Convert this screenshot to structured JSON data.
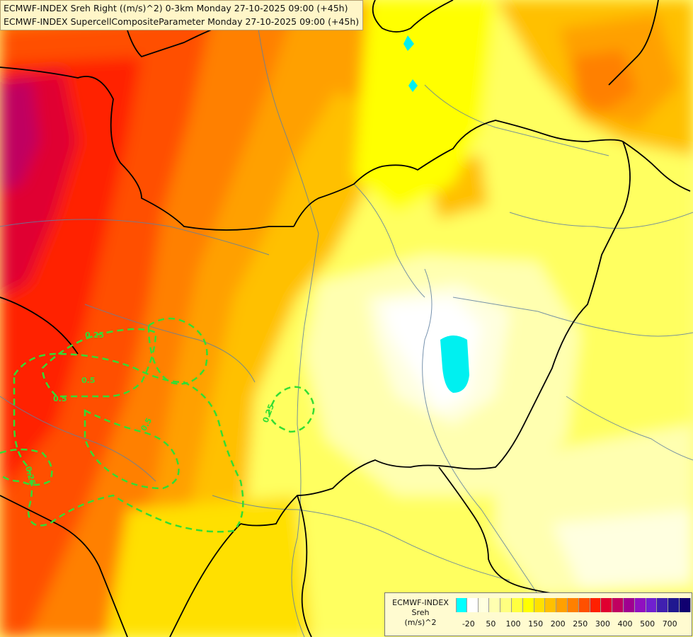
{
  "title": {
    "line1": "ECMWF-INDEX Sreh Right ((m/s)^2) 0-3km Monday 27-10-2025 09:00 (+45h)",
    "line2": "ECMWF-INDEX SupercellCompositeParameter Monday 27-10-2025 09:00 (+45h)"
  },
  "legend": {
    "title_lines": [
      "ECMWF-INDEX",
      "Sreh",
      "(m/s)^2"
    ],
    "swatches": [
      "#00ffff",
      "#ffffff",
      "#ffffe0",
      "#ffffb0",
      "#ffff80",
      "#ffff40",
      "#ffff00",
      "#ffe000",
      "#ffc000",
      "#ffa000",
      "#ff8000",
      "#ff5000",
      "#ff2000",
      "#e00030",
      "#c00060",
      "#a00090",
      "#9010c0",
      "#7020d0",
      "#4020b0",
      "#201890",
      "#100070"
    ],
    "ticks": [
      "-20",
      "50",
      "100",
      "150",
      "200",
      "250",
      "300",
      "400",
      "500",
      "700"
    ]
  },
  "contour_labels": [
    "0.25",
    "0.5",
    "0.5",
    "0.5",
    "0.25",
    "0.25"
  ],
  "colors": {
    "contour": "#33dd33",
    "border": "#000000",
    "river": "#6080a0"
  }
}
